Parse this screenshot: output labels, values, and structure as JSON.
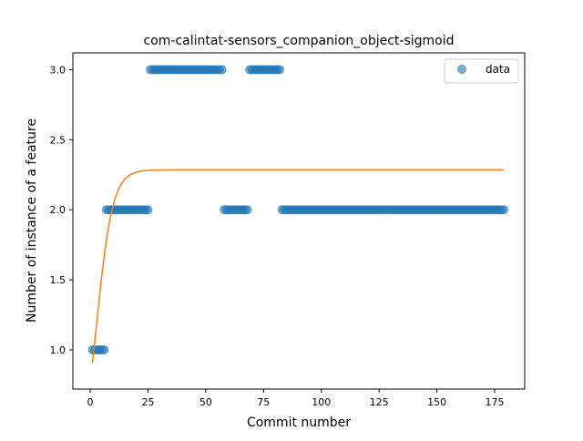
{
  "chart_data": {
    "type": "scatter",
    "title": "com-calintat-sensors_companion_object-sigmoid",
    "xlabel": "Commit number",
    "ylabel": "Number of instance of a feature",
    "xlim": [
      -7.5,
      188
    ],
    "ylim": [
      0.72,
      3.12
    ],
    "x_ticks": [
      0,
      25,
      50,
      75,
      100,
      125,
      150,
      175
    ],
    "y_ticks": [
      1.0,
      1.5,
      2.0,
      2.5,
      3.0
    ],
    "x_tick_labels": [
      "0",
      "25",
      "50",
      "75",
      "100",
      "125",
      "150",
      "175"
    ],
    "y_tick_labels": [
      "1.0",
      "1.5",
      "2.0",
      "2.5",
      "3.0"
    ],
    "grid": false,
    "legend": {
      "position": "top-right",
      "entries": [
        "data"
      ]
    },
    "colors": {
      "data": "#1f77b4",
      "fit": "#ff7f0e"
    },
    "series": [
      {
        "name": "data",
        "kind": "scatter",
        "segments": [
          {
            "x_start": 1,
            "x_end": 6,
            "y": 1.0
          },
          {
            "x_start": 7,
            "x_end": 25,
            "y": 2.0
          },
          {
            "x_start": 26,
            "x_end": 57,
            "y": 3.0
          },
          {
            "x_start": 58,
            "x_end": 68,
            "y": 2.0
          },
          {
            "x_start": 69,
            "x_end": 82,
            "y": 3.0
          },
          {
            "x_start": 83,
            "x_end": 179,
            "y": 2.0
          }
        ]
      },
      {
        "kind": "line",
        "model": "sigmoid",
        "L": 2.285,
        "k": 0.28,
        "x0": 2.5,
        "x_range": [
          1,
          179
        ]
      }
    ]
  }
}
